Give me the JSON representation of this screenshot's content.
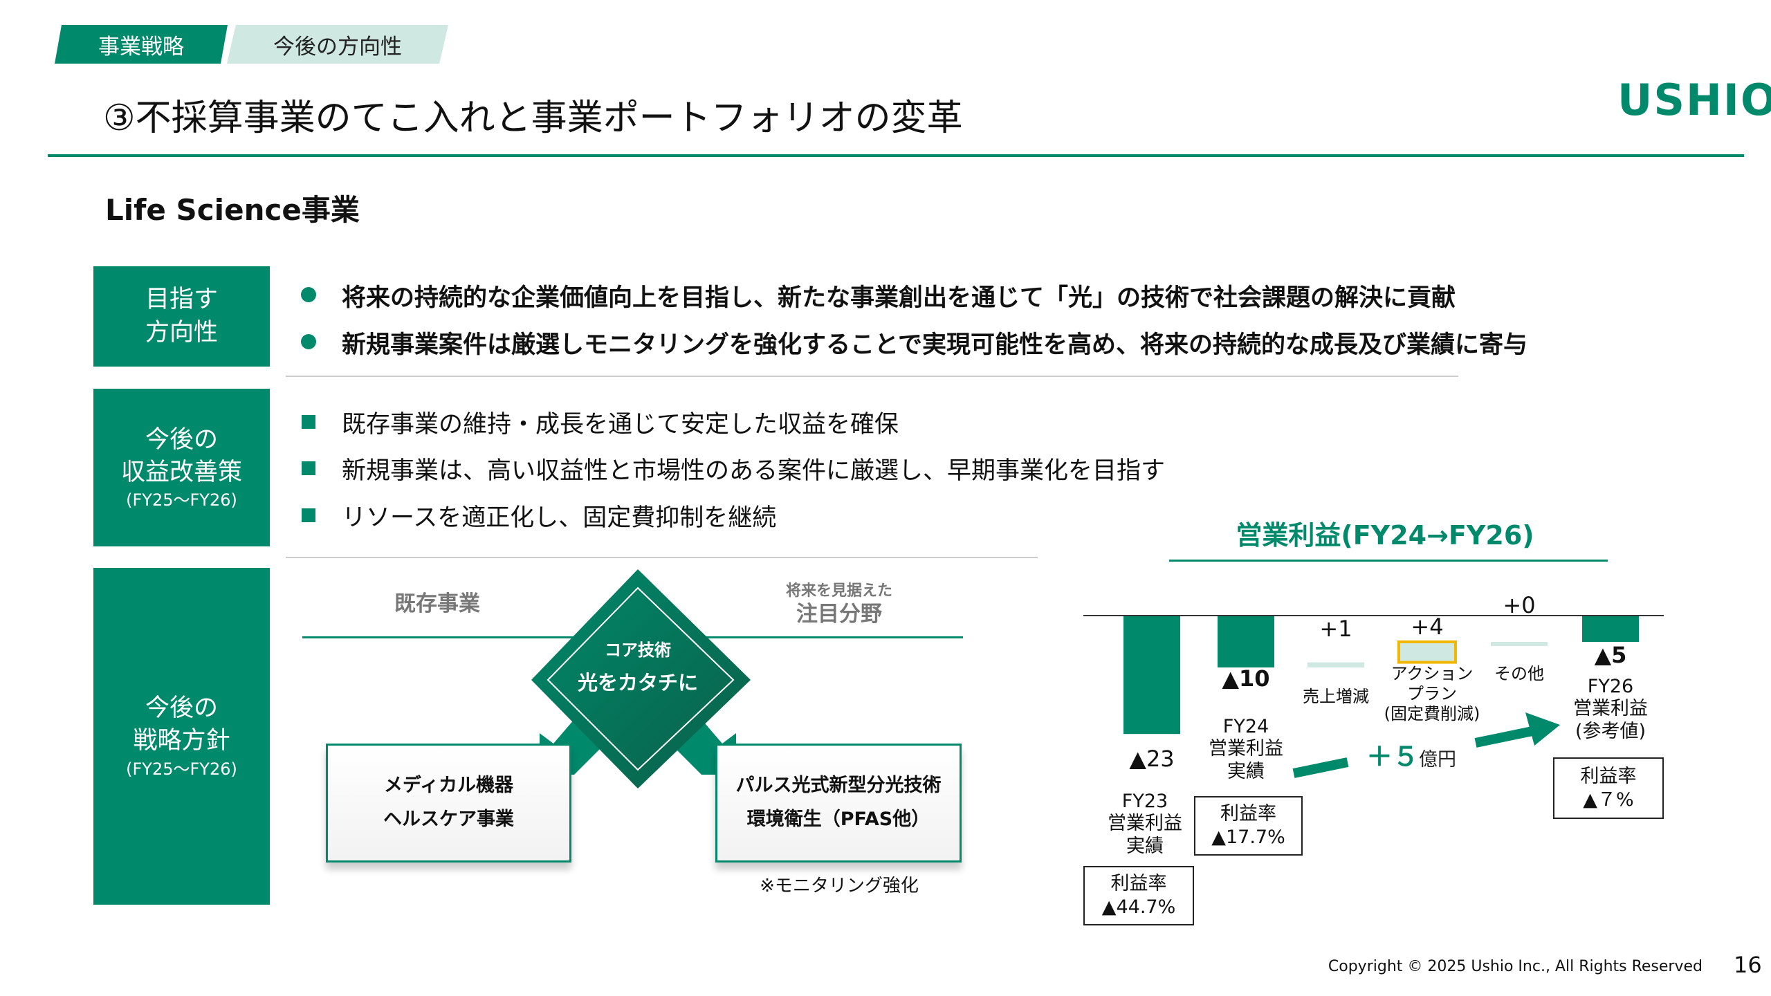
{
  "tabs": [
    "事業戦略",
    "今後の方向性"
  ],
  "title": "③不採算事業のてこ入れと事業ポートフォリオの変革",
  "logo": "USHIO",
  "section": "Life Science事業",
  "rows": [
    {
      "label": [
        "目指す",
        "方向性"
      ],
      "sub": "",
      "bullets": [
        "将来の持続的な企業価値向上を目指し、新たな事業創出を通じて「光」の技術で社会課題の解決に貢献",
        "新規事業案件は厳選しモニタリングを強化することで実現可能性を高め、将来の持続的な成長及び業績に寄与"
      ]
    },
    {
      "label": [
        "今後の",
        "収益改善策"
      ],
      "sub": "(FY25～FY26)",
      "bullets": [
        "既存事業の維持・成長を通じて安定した収益を確保",
        "新規事業は、高い収益性と市場性のある案件に厳選し、早期事業化を目指す",
        "リソースを適正化し、固定費抑制を継続"
      ]
    },
    {
      "label": [
        "今後の",
        "戦略方針"
      ],
      "sub": "(FY25～FY26)"
    }
  ],
  "diagram": {
    "left_header": "既存事業",
    "right_header_small": "将来を見据えた",
    "right_header": "注目分野",
    "core_small": "コア技術",
    "core": "光をカタチに",
    "left_box": [
      "メディカル機器",
      "ヘルスケア事業"
    ],
    "right_box": [
      "パルス光式新型分光技術",
      "環境衛生（PFAS他）"
    ],
    "note": "※モニタリング強化"
  },
  "chart_data": {
    "type": "bar",
    "title": "営業利益(FY24→FY26)",
    "categories": [
      "FY23 営業利益 実績",
      "FY24 営業利益 実績",
      "売上増減",
      "アクションプラン（固定費削減）",
      "その他",
      "FY26 営業利益（参考値）"
    ],
    "values": [
      -23,
      -10,
      1,
      4,
      0,
      -5
    ],
    "value_labels": [
      "▲23",
      "▲10",
      "+1",
      "+4",
      "+0",
      "▲5"
    ],
    "cat_labels": [
      [
        "FY23",
        "営業利益",
        "実績"
      ],
      [
        "FY24",
        "営業利益",
        "実績"
      ],
      [
        "売上増減"
      ],
      [
        "アクション",
        "プラン",
        "(固定費削減)"
      ],
      [
        "その他"
      ],
      [
        "FY26",
        "営業利益",
        "(参考値)"
      ]
    ],
    "margins": [
      {
        "label": "利益率",
        "value": "▲44.7%"
      },
      {
        "label": "利益率",
        "value": "▲17.7%"
      },
      {
        "label": "利益率",
        "value": "▲７%"
      }
    ],
    "improvement": {
      "value": "＋５",
      "unit": "億円"
    },
    "colors": {
      "bar": "#00896b",
      "delta": "#cfe9e2",
      "highlight": "#f2b705"
    }
  },
  "footer": {
    "copyright": "Copyright © 2025 Ushio Inc., All Rights Reserved",
    "page": "16"
  },
  "colors": {
    "accent": "#00896b",
    "tab_light": "#cfe9e2"
  }
}
